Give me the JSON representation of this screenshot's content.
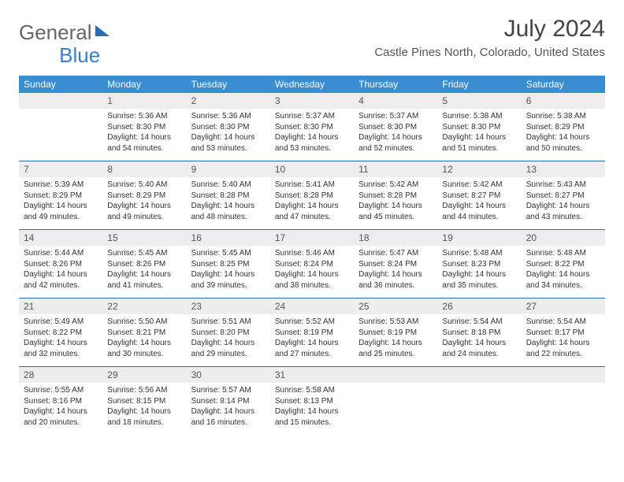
{
  "brand": {
    "part1": "General",
    "part2": "Blue"
  },
  "title": "July 2024",
  "location": "Castle Pines North, Colorado, United States",
  "colors": {
    "header_bg": "#3a8dd0",
    "daynum_bg": "#ededed",
    "rule": "#2a6db5"
  },
  "weekdays": [
    "Sunday",
    "Monday",
    "Tuesday",
    "Wednesday",
    "Thursday",
    "Friday",
    "Saturday"
  ],
  "weeks": [
    [
      {
        "n": "",
        "text": ""
      },
      {
        "n": "1",
        "text": "Sunrise: 5:36 AM\nSunset: 8:30 PM\nDaylight: 14 hours and 54 minutes."
      },
      {
        "n": "2",
        "text": "Sunrise: 5:36 AM\nSunset: 8:30 PM\nDaylight: 14 hours and 53 minutes."
      },
      {
        "n": "3",
        "text": "Sunrise: 5:37 AM\nSunset: 8:30 PM\nDaylight: 14 hours and 53 minutes."
      },
      {
        "n": "4",
        "text": "Sunrise: 5:37 AM\nSunset: 8:30 PM\nDaylight: 14 hours and 52 minutes."
      },
      {
        "n": "5",
        "text": "Sunrise: 5:38 AM\nSunset: 8:30 PM\nDaylight: 14 hours and 51 minutes."
      },
      {
        "n": "6",
        "text": "Sunrise: 5:38 AM\nSunset: 8:29 PM\nDaylight: 14 hours and 50 minutes."
      }
    ],
    [
      {
        "n": "7",
        "text": "Sunrise: 5:39 AM\nSunset: 8:29 PM\nDaylight: 14 hours and 49 minutes."
      },
      {
        "n": "8",
        "text": "Sunrise: 5:40 AM\nSunset: 8:29 PM\nDaylight: 14 hours and 49 minutes."
      },
      {
        "n": "9",
        "text": "Sunrise: 5:40 AM\nSunset: 8:28 PM\nDaylight: 14 hours and 48 minutes."
      },
      {
        "n": "10",
        "text": "Sunrise: 5:41 AM\nSunset: 8:28 PM\nDaylight: 14 hours and 47 minutes."
      },
      {
        "n": "11",
        "text": "Sunrise: 5:42 AM\nSunset: 8:28 PM\nDaylight: 14 hours and 45 minutes."
      },
      {
        "n": "12",
        "text": "Sunrise: 5:42 AM\nSunset: 8:27 PM\nDaylight: 14 hours and 44 minutes."
      },
      {
        "n": "13",
        "text": "Sunrise: 5:43 AM\nSunset: 8:27 PM\nDaylight: 14 hours and 43 minutes."
      }
    ],
    [
      {
        "n": "14",
        "text": "Sunrise: 5:44 AM\nSunset: 8:26 PM\nDaylight: 14 hours and 42 minutes."
      },
      {
        "n": "15",
        "text": "Sunrise: 5:45 AM\nSunset: 8:26 PM\nDaylight: 14 hours and 41 minutes."
      },
      {
        "n": "16",
        "text": "Sunrise: 5:45 AM\nSunset: 8:25 PM\nDaylight: 14 hours and 39 minutes."
      },
      {
        "n": "17",
        "text": "Sunrise: 5:46 AM\nSunset: 8:24 PM\nDaylight: 14 hours and 38 minutes."
      },
      {
        "n": "18",
        "text": "Sunrise: 5:47 AM\nSunset: 8:24 PM\nDaylight: 14 hours and 36 minutes."
      },
      {
        "n": "19",
        "text": "Sunrise: 5:48 AM\nSunset: 8:23 PM\nDaylight: 14 hours and 35 minutes."
      },
      {
        "n": "20",
        "text": "Sunrise: 5:48 AM\nSunset: 8:22 PM\nDaylight: 14 hours and 34 minutes."
      }
    ],
    [
      {
        "n": "21",
        "text": "Sunrise: 5:49 AM\nSunset: 8:22 PM\nDaylight: 14 hours and 32 minutes."
      },
      {
        "n": "22",
        "text": "Sunrise: 5:50 AM\nSunset: 8:21 PM\nDaylight: 14 hours and 30 minutes."
      },
      {
        "n": "23",
        "text": "Sunrise: 5:51 AM\nSunset: 8:20 PM\nDaylight: 14 hours and 29 minutes."
      },
      {
        "n": "24",
        "text": "Sunrise: 5:52 AM\nSunset: 8:19 PM\nDaylight: 14 hours and 27 minutes."
      },
      {
        "n": "25",
        "text": "Sunrise: 5:53 AM\nSunset: 8:19 PM\nDaylight: 14 hours and 25 minutes."
      },
      {
        "n": "26",
        "text": "Sunrise: 5:54 AM\nSunset: 8:18 PM\nDaylight: 14 hours and 24 minutes."
      },
      {
        "n": "27",
        "text": "Sunrise: 5:54 AM\nSunset: 8:17 PM\nDaylight: 14 hours and 22 minutes."
      }
    ],
    [
      {
        "n": "28",
        "text": "Sunrise: 5:55 AM\nSunset: 8:16 PM\nDaylight: 14 hours and 20 minutes."
      },
      {
        "n": "29",
        "text": "Sunrise: 5:56 AM\nSunset: 8:15 PM\nDaylight: 14 hours and 18 minutes."
      },
      {
        "n": "30",
        "text": "Sunrise: 5:57 AM\nSunset: 8:14 PM\nDaylight: 14 hours and 16 minutes."
      },
      {
        "n": "31",
        "text": "Sunrise: 5:58 AM\nSunset: 8:13 PM\nDaylight: 14 hours and 15 minutes."
      },
      {
        "n": "",
        "text": ""
      },
      {
        "n": "",
        "text": ""
      },
      {
        "n": "",
        "text": ""
      }
    ]
  ]
}
